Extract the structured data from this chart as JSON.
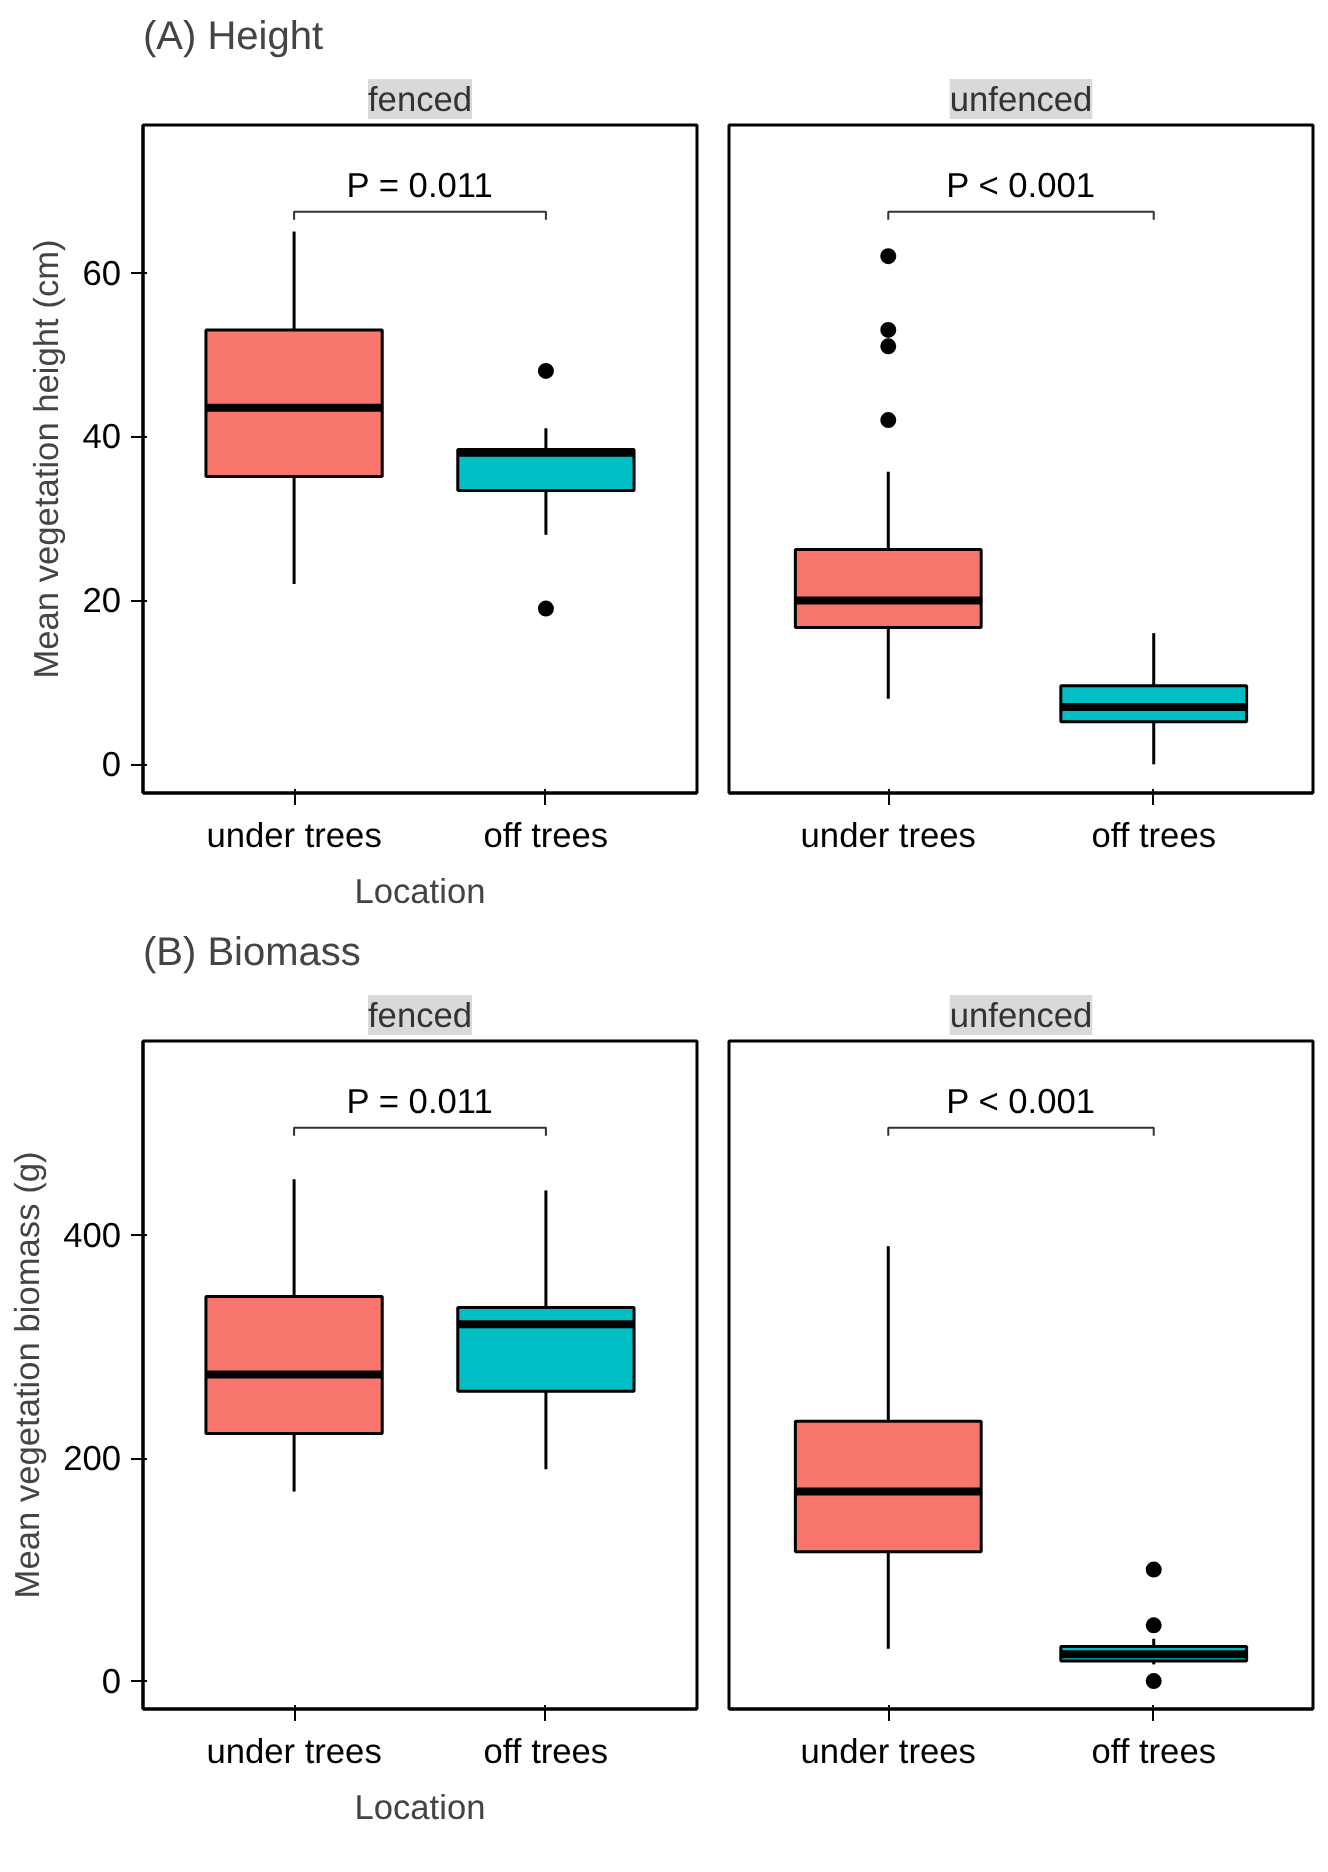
{
  "chart_data": [
    {
      "type": "box",
      "title": "(A) Height",
      "subtitle": "fenced",
      "xlabel": "Location",
      "ylabel": "Mean vegetation height (cm)",
      "categories": [
        "under trees",
        "off trees"
      ],
      "colors": [
        "#f8766d",
        "#00bfc4"
      ],
      "ylim": [
        -3.5,
        78
      ],
      "yticks": [
        0,
        20,
        40,
        60
      ],
      "grid": false,
      "annotations": [
        "P = 0.011"
      ],
      "boxes": [
        {
          "low": 22,
          "q1": 35.1,
          "median": 43.5,
          "q3": 53,
          "high": 65
        },
        {
          "low": 28,
          "q1": 33.4,
          "median": 38,
          "q3": 38.4,
          "high": 41,
          "outliers": [
            48,
            19
          ]
        }
      ]
    },
    {
      "type": "box",
      "subtitle": "unfenced",
      "categories": [
        "under trees",
        "off trees"
      ],
      "colors": [
        "#f8766d",
        "#00bfc4"
      ],
      "ylim": [
        -3.5,
        78
      ],
      "yticks": [
        0,
        20,
        40,
        60
      ],
      "tick_labels": "x",
      "grid": false,
      "annotations": [
        "P < 0.001"
      ],
      "boxes": [
        {
          "low": 8,
          "q1": 16.7,
          "median": 20,
          "q3": 26.2,
          "high": 35.7,
          "outliers": [
            62,
            53,
            51,
            42
          ]
        },
        {
          "low": 0,
          "q1": 5.2,
          "median": 7,
          "q3": 9.6,
          "high": 16
        }
      ]
    },
    {
      "type": "box",
      "title": "(B) Biomass",
      "subtitle": "fenced",
      "xlabel": "Location",
      "ylabel": "Mean vegetation biomass (g)",
      "categories": [
        "under trees",
        "off trees"
      ],
      "colors": [
        "#f8766d",
        "#00bfc4"
      ],
      "ylim": [
        -25,
        574
      ],
      "yticks": [
        0,
        200,
        400
      ],
      "grid": false,
      "annotations": [
        "P = 0.011"
      ],
      "boxes": [
        {
          "low": 170,
          "q1": 222,
          "median": 275,
          "q3": 345,
          "high": 450
        },
        {
          "low": 190,
          "q1": 260,
          "median": 320,
          "q3": 335,
          "high": 440
        }
      ]
    },
    {
      "type": "box",
      "subtitle": "unfenced",
      "categories": [
        "under trees",
        "off trees"
      ],
      "colors": [
        "#f8766d",
        "#00bfc4"
      ],
      "ylim": [
        -25,
        574
      ],
      "yticks": [
        0,
        200,
        400
      ],
      "tick_labels": "x",
      "grid": false,
      "annotations": [
        "P < 0.001"
      ],
      "boxes": [
        {
          "low": 29,
          "q1": 116,
          "median": 170,
          "q3": 233,
          "high": 390
        },
        {
          "low": 15,
          "q1": 18,
          "median": 24,
          "q3": 31,
          "high": 38,
          "outliers": [
            100,
            50,
            0
          ]
        }
      ]
    }
  ]
}
